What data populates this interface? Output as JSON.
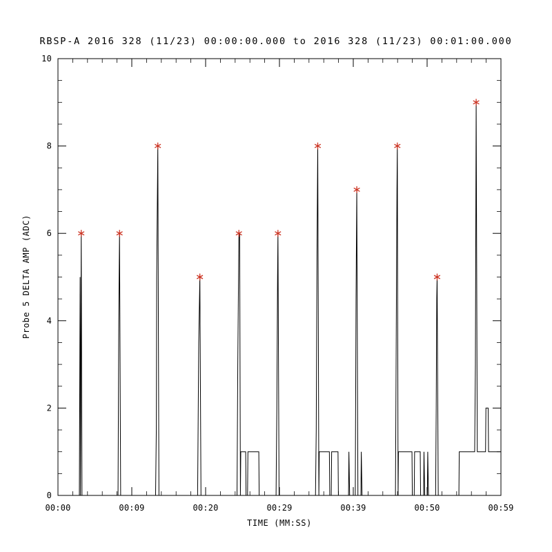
{
  "window": {
    "background_color": "#ffffff",
    "foreground_color": "#000000"
  },
  "chart_data": {
    "type": "line",
    "title": "RBSP-A 2016 328 (11/23) 00:00:00.000 to 2016 328 (11/23) 00:01:00.000",
    "xlabel": "TIME (MM:SS)",
    "ylabel": "Probe 5 DELTA AMP (ADC)",
    "xlim_seconds": [
      0,
      59
    ],
    "ylim": [
      0,
      10
    ],
    "grid": false,
    "frame": "box",
    "x_tick_labels": [
      "00:00",
      "00:09",
      "00:20",
      "00:29",
      "00:39",
      "00:50",
      "00:59"
    ],
    "x_tick_seconds": [
      0,
      9.833,
      19.667,
      29.5,
      39.333,
      49.167,
      59
    ],
    "y_tick_labels": [
      "0",
      "2",
      "4",
      "6",
      "8",
      "10"
    ],
    "y_ticks": [
      0,
      2,
      4,
      6,
      8,
      10
    ],
    "y_minor_step": 0.5,
    "line_color": "#000000",
    "marker": "asterisk",
    "marker_color": "#cc3322",
    "series": [
      {
        "name": "Probe 5 DELTA AMP (ADC)",
        "points": [
          [
            0,
            0
          ],
          [
            2.85,
            0
          ],
          [
            2.95,
            5
          ],
          [
            3.0,
            0
          ],
          [
            3.05,
            3
          ],
          [
            3.1,
            6
          ],
          [
            3.2,
            0
          ],
          [
            8.0,
            0
          ],
          [
            8.1,
            4
          ],
          [
            8.2,
            6
          ],
          [
            8.35,
            0
          ],
          [
            13.0,
            0
          ],
          [
            13.1,
            1.5
          ],
          [
            13.15,
            5
          ],
          [
            13.3,
            8
          ],
          [
            13.45,
            0
          ],
          [
            18.6,
            0
          ],
          [
            18.75,
            3.5
          ],
          [
            18.9,
            5
          ],
          [
            19.05,
            0
          ],
          [
            23.85,
            0
          ],
          [
            23.95,
            3
          ],
          [
            24.1,
            6
          ],
          [
            24.2,
            6
          ],
          [
            24.3,
            0
          ],
          [
            24.35,
            1
          ],
          [
            25.0,
            1
          ],
          [
            25.05,
            0
          ],
          [
            25.25,
            0
          ],
          [
            25.3,
            1
          ],
          [
            26.75,
            1
          ],
          [
            26.8,
            0
          ],
          [
            29.05,
            0
          ],
          [
            29.15,
            2
          ],
          [
            29.25,
            5
          ],
          [
            29.3,
            6
          ],
          [
            29.45,
            0
          ],
          [
            34.3,
            0
          ],
          [
            34.4,
            1.5
          ],
          [
            34.5,
            5.5
          ],
          [
            34.6,
            8
          ],
          [
            34.75,
            0
          ],
          [
            34.8,
            1
          ],
          [
            36.15,
            1
          ],
          [
            36.2,
            0
          ],
          [
            36.4,
            0
          ],
          [
            36.45,
            1
          ],
          [
            37.3,
            1
          ],
          [
            37.35,
            0
          ],
          [
            38.7,
            0
          ],
          [
            38.75,
            1
          ],
          [
            38.85,
            0
          ],
          [
            39.6,
            0
          ],
          [
            39.7,
            4.5
          ],
          [
            39.8,
            7
          ],
          [
            39.95,
            0
          ],
          [
            40.35,
            0
          ],
          [
            40.4,
            1
          ],
          [
            40.5,
            0
          ],
          [
            44.95,
            0
          ],
          [
            45.05,
            3.5
          ],
          [
            45.15,
            7
          ],
          [
            45.2,
            8
          ],
          [
            45.3,
            0
          ],
          [
            45.35,
            1
          ],
          [
            47.15,
            1
          ],
          [
            47.2,
            0
          ],
          [
            47.45,
            0
          ],
          [
            47.5,
            1
          ],
          [
            48.25,
            1
          ],
          [
            48.3,
            0
          ],
          [
            48.7,
            0
          ],
          [
            48.75,
            1
          ],
          [
            48.85,
            0
          ],
          [
            49.2,
            0
          ],
          [
            49.25,
            1
          ],
          [
            49.35,
            0
          ],
          [
            50.3,
            0
          ],
          [
            50.38,
            2
          ],
          [
            50.45,
            4.5
          ],
          [
            50.5,
            5
          ],
          [
            50.65,
            0
          ],
          [
            53.4,
            0
          ],
          [
            53.45,
            1
          ],
          [
            55.5,
            1
          ],
          [
            55.6,
            3
          ],
          [
            55.7,
            9
          ],
          [
            55.85,
            1
          ],
          [
            56.95,
            1
          ],
          [
            57.0,
            2
          ],
          [
            57.3,
            2
          ],
          [
            57.35,
            1
          ],
          [
            59,
            1
          ]
        ]
      }
    ],
    "peak_markers": [
      [
        3.1,
        6
      ],
      [
        8.2,
        6
      ],
      [
        13.3,
        8
      ],
      [
        18.9,
        5
      ],
      [
        24.1,
        6
      ],
      [
        29.3,
        6
      ],
      [
        34.6,
        8
      ],
      [
        39.8,
        7
      ],
      [
        45.2,
        8
      ],
      [
        50.5,
        5
      ],
      [
        55.7,
        9
      ]
    ]
  }
}
